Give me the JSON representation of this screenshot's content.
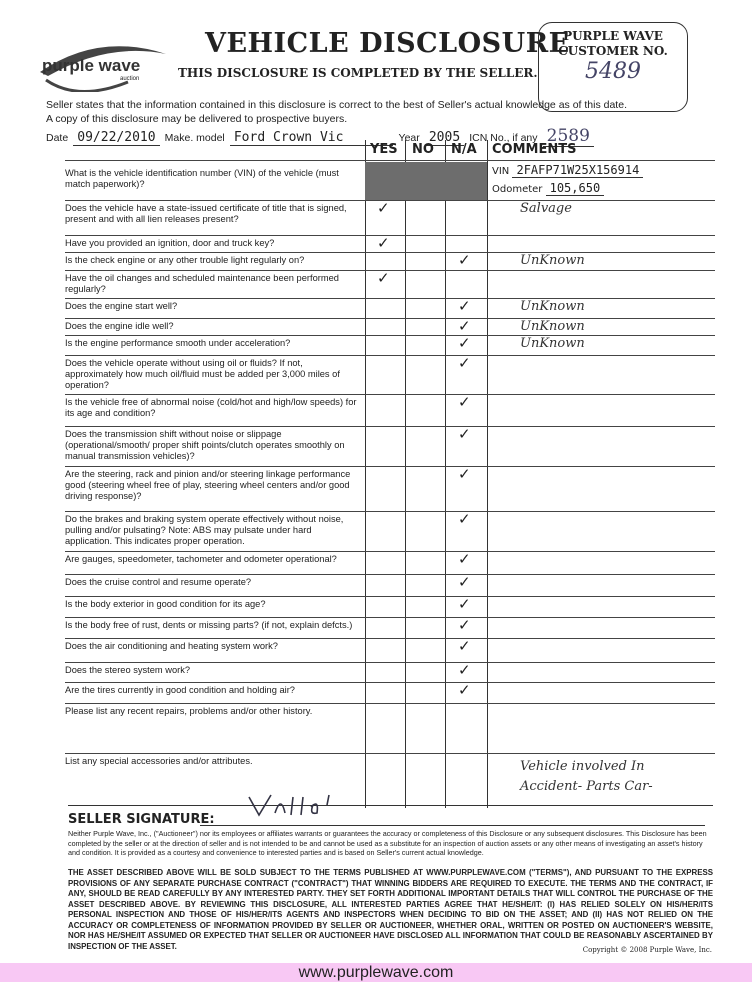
{
  "logo": {
    "text": "purple wave",
    "sub": "auction"
  },
  "title": "VEHICLE DISCLOSURE",
  "subtitle": "THIS DISCLOSURE IS COMPLETED BY THE SELLER.",
  "customer_box": {
    "label1": "PURPLE WAVE",
    "label2": "CUSTOMER NO.",
    "value": "5489"
  },
  "intro": [
    "Seller states that the information contained in this disclosure is correct to the best of Seller's actual knowledge as of this date.",
    "A copy of this disclosure may be delivered to prospective buyers."
  ],
  "fields": {
    "date_label": "Date",
    "date": "09/22/2010",
    "make_label": "Make. model",
    "make": "Ford Crown Vic",
    "year_label": "Year",
    "year": "2005",
    "icn_label": "ICN No., if any",
    "icn": "2589"
  },
  "columns": {
    "yes": "YES",
    "no": "NO",
    "na": "N/A",
    "comments": "COMMENTS"
  },
  "vin": {
    "question": "What is the vehicle identification number (VIN) of the vehicle (must match paperwork)?",
    "vin_label": "VIN",
    "vin": "2FAFP71W25X156914",
    "odometer_label": "Odometer",
    "odometer": "105,650"
  },
  "questions": [
    {
      "q": "Does the vehicle have a state-issued certificate of title that is signed, present and with all lien releases present?",
      "answer": "yes",
      "comment": "Salvage"
    },
    {
      "q": "Have you provided an ignition, door and truck key?",
      "answer": "yes",
      "comment": ""
    },
    {
      "q": "Is the check engine or any other trouble light regularly on?",
      "answer": "na",
      "comment": "UnKnown"
    },
    {
      "q": "Have the oil changes and scheduled maintenance been performed regularly?",
      "answer": "yes",
      "comment": ""
    },
    {
      "q": "Does the engine start well?",
      "answer": "na",
      "comment": "UnKnown"
    },
    {
      "q": "Does the engine idle well?",
      "answer": "na",
      "comment": "UnKnown"
    },
    {
      "q": "Is the engine performance smooth under acceleration?",
      "answer": "na",
      "comment": "UnKnown"
    },
    {
      "q": "Does the vehicle operate without using oil or fluids? If not, approximately how much oil/fluid must be added per 3,000 miles of operation?",
      "answer": "na",
      "comment": ""
    },
    {
      "q": "Is the vehicle free of abnormal noise (cold/hot and high/low speeds) for its age and condition?",
      "answer": "na",
      "comment": ""
    },
    {
      "q": "Does the transmission shift without noise or slippage (operational/smooth/ proper shift points/clutch operates smoothly on manual transmission vehicles)?",
      "answer": "na",
      "comment": ""
    },
    {
      "q": "Are the steering, rack and pinion and/or steering linkage performance good (steering wheel free of play, steering wheel centers and/or good driving response)?",
      "answer": "na",
      "comment": ""
    },
    {
      "q": "Do the brakes and braking system operate effectively without noise, pulling and/or pulsating? Note: ABS may pulsate under hard application. This indicates proper operation.",
      "answer": "na",
      "comment": ""
    },
    {
      "q": "Are gauges, speedometer, tachometer and odometer operational?",
      "answer": "na",
      "comment": ""
    },
    {
      "q": "Does the cruise control and resume operate?",
      "answer": "na",
      "comment": ""
    },
    {
      "q": "Is the body exterior in good condition for its age?",
      "answer": "na",
      "comment": ""
    },
    {
      "q": "Is the body free of rust, dents or missing parts? (if not, explain defcts.)",
      "answer": "na",
      "comment": ""
    },
    {
      "q": "Does the air conditioning and heating system work?",
      "answer": "na",
      "comment": ""
    },
    {
      "q": "Does the stereo system work?",
      "answer": "na",
      "comment": ""
    },
    {
      "q": "Are the tires currently in good condition and holding air?",
      "answer": "na",
      "comment": ""
    },
    {
      "q": "Please list any recent repairs, problems and/or other history.",
      "answer": "",
      "comment": ""
    },
    {
      "q": "List any special accessories and/or attributes.",
      "answer": "",
      "comment": "Vehicle involved In Accident- Parts Car-"
    }
  ],
  "signature": {
    "label": "SELLER SIGNATURE:"
  },
  "disclaimer": "Neither Purple Wave, Inc., (\"Auctioneer\") nor its employees or affiliates warrants or guarantees the accuracy or completeness of this Disclosure or any subsequent disclosures. This Disclosure has been completed by the seller or at the direction of seller and is not intended to be and cannot be used as a substitute for an inspection of auction assets or any other means of investigating an asset's history and condition. It is provided as a courtesy and convenience to interested parties and is based on Seller's current actual knowledge.",
  "terms": "THE ASSET DESCRIBED ABOVE WILL BE SOLD SUBJECT TO THE TERMS PUBLISHED AT WWW.PURPLEWAVE.COM (\"TERMS\"), AND PURSUANT TO THE EXPRESS PROVISIONS OF ANY SEPARATE PURCHASE CONTRACT (\"CONTRACT\") THAT WINNING BIDDERS ARE REQUIRED TO EXECUTE. THE TERMS AND THE CONTRACT, IF ANY, SHOULD BE READ CAREFULLY BY ANY INTERESTED PARTY. THEY SET FORTH ADDITIONAL IMPORTANT DETAILS THAT WILL CONTROL THE PURCHASE OF THE ASSET DESCRIBED ABOVE. BY REVIEWING THIS DISCLOSURE, ALL INTERESTED PARTIES AGREE THAT HE/SHE/IT: (I) HAS RELIED SOLELY ON HIS/HER/ITS PERSONAL INSPECTION AND THOSE OF HIS/HER/ITS AGENTS AND INSPECTORS WHEN DECIDING TO BID ON THE ASSET; AND (II) HAS NOT RELIED ON THE ACCURACY OR COMPLETENESS OF INFORMATION PROVIDED BY SELLER OR AUCTIONEER, WHETHER ORAL, WRITTEN OR POSTED ON AUCTIONEER'S WEBSITE, NOR HAS HE/SHE/IT ASSUMED OR EXPECTED THAT SELLER OR AUCTIONEER HAVE DISCLOSED ALL INFORMATION THAT COULD BE REASONABLY ASCERTAINED BY INSPECTION OF THE ASSET.",
  "copyright": "Copyright © 2008 Purple Wave, Inc.",
  "footer_url": "www.purplewave.com"
}
